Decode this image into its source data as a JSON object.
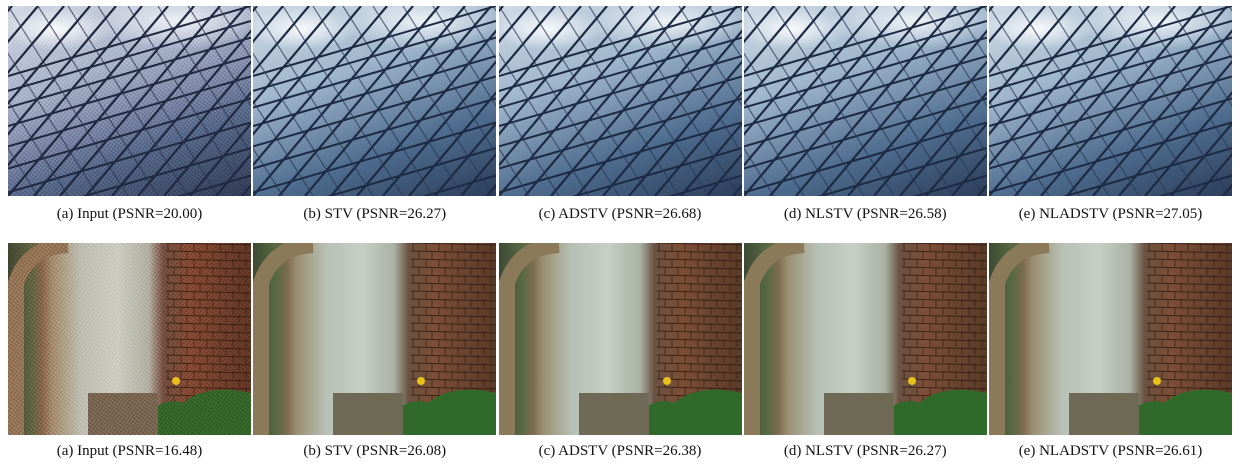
{
  "rows": [
    {
      "scene": "glass-roof",
      "panels": [
        {
          "caption": "(a) Input (PSNR=20.00)",
          "noisy": true
        },
        {
          "caption": "(b) STV (PSNR=26.27)",
          "noisy": false
        },
        {
          "caption": "(c) ADSTV (PSNR=26.68)",
          "noisy": false
        },
        {
          "caption": "(d) NLSTV (PSNR=26.58)",
          "noisy": false
        },
        {
          "caption": "(e) NLADSTV (PSNR=27.05)",
          "noisy": false
        }
      ]
    },
    {
      "scene": "brick-wall-arch",
      "panels": [
        {
          "caption": "(a) Input (PSNR=16.48)",
          "noisy": true
        },
        {
          "caption": "(b) STV (PSNR=26.08)",
          "noisy": false
        },
        {
          "caption": "(c) ADSTV (PSNR=26.38)",
          "noisy": false
        },
        {
          "caption": "(d) NLSTV (PSNR=26.27)",
          "noisy": false
        },
        {
          "caption": "(e) NLADSTV (PSNR=26.61)",
          "noisy": false
        }
      ]
    }
  ]
}
